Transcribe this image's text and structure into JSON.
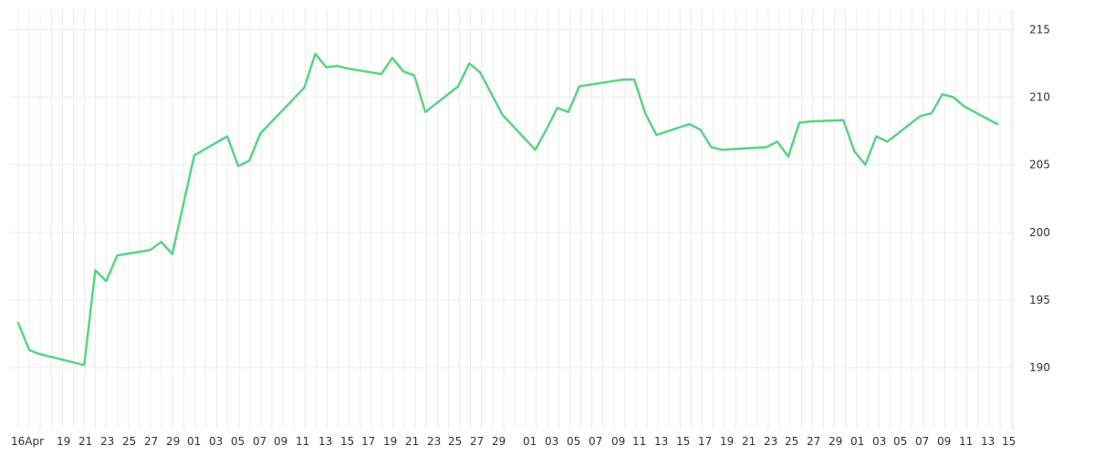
{
  "chart_data": {
    "type": "line",
    "title": "",
    "xlabel": "",
    "ylabel": "",
    "ylim": [
      185.5,
      216.5
    ],
    "yticks": [
      190,
      195,
      200,
      205,
      210,
      215
    ],
    "grid": true,
    "legend": "none",
    "colors": {
      "line": "#57d483",
      "grid": "#ececec",
      "text": "#333333"
    },
    "x_tick_labels": [
      "16Apr",
      "19",
      "21",
      "23",
      "25",
      "27",
      "29",
      "01",
      "03",
      "05",
      "07",
      "09",
      "11",
      "13",
      "15",
      "17",
      "19",
      "21",
      "23",
      "25",
      "27",
      "29",
      "01",
      "03",
      "05",
      "07",
      "09",
      "11",
      "13",
      "15",
      "17",
      "19",
      "21",
      "23",
      "25",
      "27",
      "29",
      "01",
      "03",
      "05",
      "07",
      "09",
      "11",
      "13",
      "15"
    ],
    "series": [
      {
        "x": [
          "2024-04-16",
          "2024-04-17",
          "2024-04-18",
          "2024-04-22",
          "2024-04-23",
          "2024-04-24",
          "2024-04-25",
          "2024-04-28",
          "2024-04-29",
          "2024-04-30",
          "2024-05-02",
          "2024-05-05",
          "2024-05-06",
          "2024-05-07",
          "2024-05-08",
          "2024-05-12",
          "2024-05-13",
          "2024-05-14",
          "2024-05-15",
          "2024-05-16",
          "2024-05-19",
          "2024-05-20",
          "2024-05-21",
          "2024-05-22",
          "2024-05-23",
          "2024-05-26",
          "2024-05-27",
          "2024-05-28",
          "2024-05-30",
          "2024-06-02",
          "2024-06-03",
          "2024-06-04",
          "2024-06-05",
          "2024-06-06",
          "2024-06-10",
          "2024-06-11",
          "2024-06-12",
          "2024-06-13",
          "2024-06-16",
          "2024-06-17",
          "2024-06-18",
          "2024-06-19",
          "2024-06-23",
          "2024-06-24",
          "2024-06-25",
          "2024-06-26",
          "2024-06-27",
          "2024-06-30",
          "2024-07-01",
          "2024-07-02",
          "2024-07-03",
          "2024-07-04",
          "2024-07-07",
          "2024-07-08",
          "2024-07-09",
          "2024-07-10",
          "2024-07-11",
          "2024-07-14"
        ],
        "values": [
          193.3,
          191.3,
          191.0,
          190.2,
          197.2,
          196.4,
          198.3,
          198.7,
          199.3,
          198.4,
          205.7,
          207.1,
          204.9,
          205.3,
          207.3,
          210.7,
          213.2,
          212.2,
          212.3,
          212.1,
          211.7,
          212.9,
          211.9,
          211.6,
          208.9,
          210.8,
          212.5,
          211.8,
          208.7,
          206.1,
          207.6,
          209.2,
          208.9,
          210.8,
          211.3,
          211.3,
          208.8,
          207.2,
          208.0,
          207.6,
          206.3,
          206.1,
          206.3,
          206.7,
          205.6,
          208.1,
          208.2,
          208.3,
          206.0,
          205.0,
          207.1,
          206.7,
          208.6,
          208.8,
          210.2,
          210.0,
          209.3,
          208.0
        ]
      }
    ]
  }
}
